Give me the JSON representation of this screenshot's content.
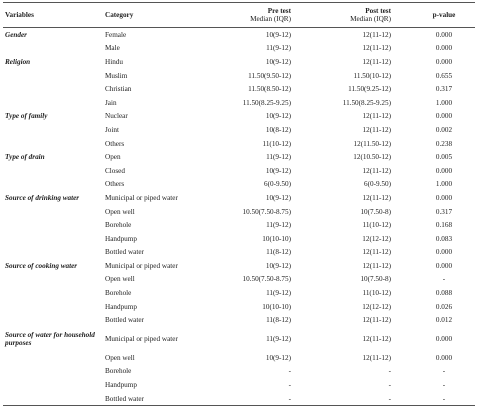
{
  "table": {
    "headers": [
      {
        "title": "Variables"
      },
      {
        "title": "Category"
      },
      {
        "title": "Pre test",
        "subtitle": "Median (IQR)"
      },
      {
        "title": "Post test",
        "subtitle": "Median (IQR)"
      },
      {
        "title": "p-value"
      }
    ],
    "rows": [
      [
        "Gender",
        "Female",
        "10(9-12)",
        "12(11-12)",
        "0.000"
      ],
      [
        null,
        "Male",
        "11(9-12)",
        "12(11-12)",
        "0.000"
      ],
      [
        "Religion",
        "Hindu",
        "10(9-12)",
        "12(11-12)",
        "0.000"
      ],
      [
        null,
        "Muslim",
        "11.50(9.50-12)",
        "11.50(10-12)",
        "0.655"
      ],
      [
        null,
        "Christian",
        "11.50(8.50-12)",
        "11.50(9.25-12)",
        "0.317"
      ],
      [
        null,
        "Jain",
        "11.50(8.25-9.25)",
        "11.50(8.25-9.25)",
        "1.000"
      ],
      [
        "Type of family",
        "Nuclear",
        "10(9-12)",
        "12(11-12)",
        "0.000"
      ],
      [
        null,
        "Joint",
        "10(8-12)",
        "12(11-12)",
        "0.002"
      ],
      [
        null,
        "Others",
        "11(10-12)",
        "12(11.50-12)",
        "0.238"
      ],
      [
        "Type of drain",
        "Open",
        "11(9-12)",
        "12(10.50-12)",
        "0.005"
      ],
      [
        null,
        "Closed",
        "10(9-12)",
        "12(11-12)",
        "0.000"
      ],
      [
        null,
        "Others",
        "6(0-9.50)",
        "6(0-9.50)",
        "1.000"
      ],
      [
        "Source of drinking water",
        "Municipal or piped water",
        "10(9-12)",
        "12(11-12)",
        "0.000"
      ],
      [
        null,
        "Open well",
        "10.50(7.50-8.75)",
        "10(7.50-8)",
        "0.317"
      ],
      [
        null,
        "Borehole",
        "11(9-12)",
        "11(10-12)",
        "0.168"
      ],
      [
        null,
        "Handpump",
        "10(10-10)",
        "12(12-12)",
        "0.083"
      ],
      [
        null,
        "Bottled water",
        "11(8-12)",
        "12(11-12)",
        "0.000"
      ],
      [
        "Source of cooking water",
        "Municipal or piped water",
        "10(9-12)",
        "12(11-12)",
        "0.000"
      ],
      [
        null,
        "Open well",
        "10.50(7.50-8.75)",
        "10(7.50-8)",
        "-"
      ],
      [
        null,
        "Borehole",
        "11(9-12)",
        "11(10-12)",
        "0.088"
      ],
      [
        null,
        "Handpump",
        "10(10-10)",
        "12(12-12)",
        "0.026"
      ],
      [
        null,
        "Bottled water",
        "11(8-12)",
        "12(11-12)",
        "0.012"
      ],
      [
        "Source of water for household purposes",
        "Municipal or piped water",
        "11(9-12)",
        "12(11-12)",
        "0.000"
      ],
      [
        null,
        "Open well",
        "10(9-12)",
        "12(11-12)",
        "0.000"
      ],
      [
        null,
        "Borehole",
        "-",
        "-",
        "-"
      ],
      [
        null,
        "Handpump",
        "-",
        "-",
        "-"
      ],
      [
        null,
        "Bottled water",
        "-",
        "-",
        "-"
      ]
    ]
  }
}
